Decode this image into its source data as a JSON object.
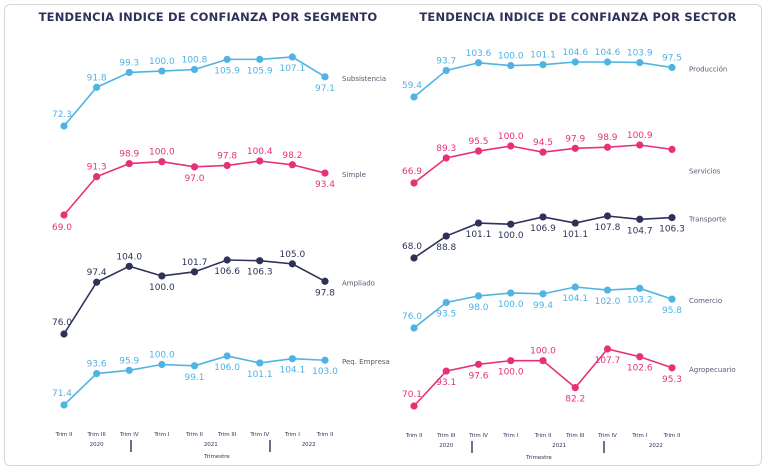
{
  "chart_data": [
    {
      "type": "line",
      "title": "TENDENCIA INDICE DE CONFIANZA POR SEGMENTO",
      "categories": [
        "Trim II",
        "Trim III",
        "Trim IV",
        "Trim I",
        "Trim II",
        "Trim III",
        "Trim IV",
        "Trim I",
        "Trim II"
      ],
      "years": [
        {
          "label": "2020",
          "from": 0,
          "to": 2
        },
        {
          "label": "2021",
          "from": 3,
          "to": 6
        },
        {
          "label": "2022",
          "from": 7,
          "to": 8
        }
      ],
      "xlabel": "Trimestre",
      "grid": false,
      "series": [
        {
          "name": "Subsistencia",
          "color": "#4fb3e3",
          "values": [
            72.3,
            91.8,
            99.3,
            100.0,
            100.8,
            105.9,
            105.9,
            107.1,
            97.1
          ],
          "labels": [
            "72.3",
            "91.8",
            "99.3",
            "100.0",
            "100.8",
            "105.9",
            "105.9",
            "107.1",
            "97.1"
          ]
        },
        {
          "name": "Simple",
          "color": "#e6317a",
          "values": [
            69.0,
            91.3,
            98.9,
            100.0,
            97.0,
            97.8,
            100.4,
            98.2,
            93.4
          ],
          "labels": [
            "69.0",
            "91.3",
            "98.9",
            "100.0",
            "97.0",
            "97.8",
            "100.4",
            "98.2",
            "93.4"
          ]
        },
        {
          "name": "Ampliado",
          "color": "#2e3258",
          "values": [
            76.0,
            97.4,
            104.0,
            100.0,
            101.7,
            106.6,
            106.3,
            105.0,
            97.8
          ],
          "labels": [
            "76.0",
            "97.4",
            "104.0",
            "100.0",
            "101.7",
            "106.6",
            "106.3",
            "105.0",
            "97.8"
          ]
        },
        {
          "name": "Peq. Empresa",
          "color": "#4fb3e3",
          "values": [
            71.4,
            93.6,
            95.9,
            100.0,
            99.1,
            106.0,
            101.1,
            104.1,
            103.0
          ],
          "labels": [
            "71.4",
            "93.6",
            "95.9",
            "100.0",
            "99.1",
            "106.0",
            "101.1",
            "104.1",
            "103.0"
          ]
        }
      ]
    },
    {
      "type": "line",
      "title": "TENDENCIA INDICE DE CONFIANZA POR SECTOR",
      "categories": [
        "Trim II",
        "Trim III",
        "Trim IV",
        "Trim I",
        "Trim II",
        "Trim III",
        "Trim IV",
        "Trim I",
        "Trim II"
      ],
      "years": [
        {
          "label": "2020",
          "from": 0,
          "to": 2
        },
        {
          "label": "2021",
          "from": 3,
          "to": 6
        },
        {
          "label": "2022",
          "from": 7,
          "to": 8
        }
      ],
      "xlabel": "Trimestre",
      "grid": false,
      "series": [
        {
          "name": "Producción",
          "color": "#4fb3e3",
          "values": [
            59.4,
            93.7,
            103.6,
            100.0,
            101.1,
            104.6,
            104.6,
            103.9,
            97.5
          ],
          "labels": [
            "59.4",
            "93.7",
            "103.6",
            "100.0",
            "101.1",
            "104.6",
            "104.6",
            "103.9",
            "97.5"
          ]
        },
        {
          "name": "Servicios",
          "color": "#e6317a",
          "values": [
            66.9,
            89.3,
            95.5,
            100.0,
            94.5,
            97.9,
            98.9,
            100.9,
            97.0
          ],
          "labels": [
            "66.9",
            "89.3",
            "95.5",
            "100.0",
            "94.5",
            "97.9",
            "98.9",
            "100.9",
            ""
          ]
        },
        {
          "name": "Transporte",
          "color": "#2e3258",
          "values": [
            68.0,
            88.8,
            101.1,
            100.0,
            106.9,
            101.1,
            107.8,
            104.7,
            106.3
          ],
          "labels": [
            "68.0",
            "88.8",
            "101.1",
            "100.0",
            "106.9",
            "101.1",
            "107.8",
            "104.7",
            "106.3"
          ]
        },
        {
          "name": "Comercio",
          "color": "#4fb3e3",
          "values": [
            76.0,
            93.5,
            98.0,
            100.0,
            99.4,
            104.1,
            102.0,
            103.2,
            95.8
          ],
          "labels": [
            "76.0",
            "93.5",
            "98.0",
            "100.0",
            "99.4",
            "104.1",
            "102.0",
            "103.2",
            "95.8"
          ]
        },
        {
          "name": "Agropecuario",
          "color": "#e6317a",
          "values": [
            70.1,
            93.1,
            97.6,
            100.0,
            100.0,
            82.2,
            107.7,
            102.6,
            95.3
          ],
          "labels": [
            "70.1",
            "93.1",
            "97.6",
            "100.0",
            "100.0",
            "82.2",
            "107.7",
            "102.6",
            "95.3"
          ]
        }
      ]
    }
  ]
}
